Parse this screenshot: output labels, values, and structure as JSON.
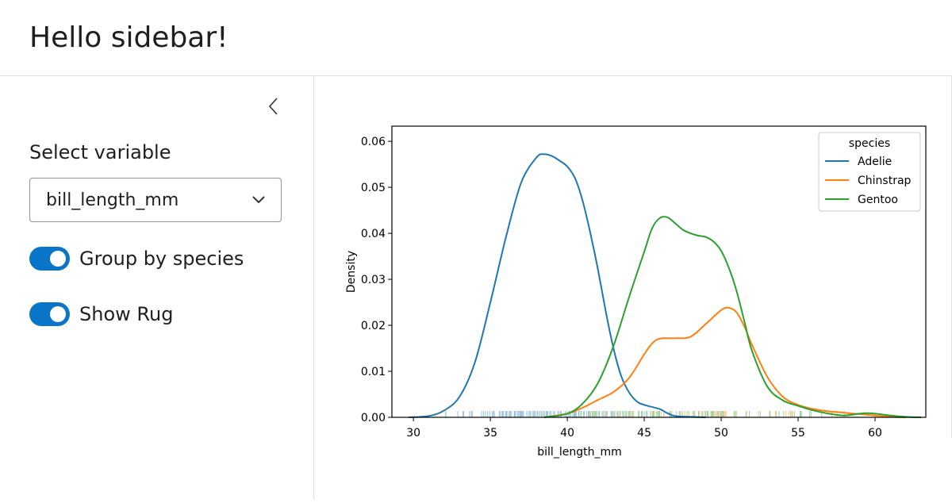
{
  "header": {
    "title": "Hello sidebar!"
  },
  "sidebar": {
    "collapse_icon": "chevron-left-icon",
    "select_label": "Select variable",
    "select_value": "bill_length_mm",
    "select_icon": "chevron-down-icon",
    "switches": [
      {
        "label": "Group by species",
        "on": true
      },
      {
        "label": "Show Rug",
        "on": true
      }
    ]
  },
  "colors": {
    "accent": "#0a74c9",
    "adelie": "#1f77b4",
    "chinstrap": "#ff7f0e",
    "gentoo": "#2ca02c"
  },
  "chart_data": {
    "type": "line",
    "xlabel": "bill_length_mm",
    "ylabel": "Density",
    "xlim": [
      28.6,
      63.3
    ],
    "ylim": [
      0,
      0.0633
    ],
    "xticks": [
      30,
      35,
      40,
      45,
      50,
      55,
      60
    ],
    "yticks": [
      0.0,
      0.01,
      0.02,
      0.03,
      0.04,
      0.05,
      0.06
    ],
    "ytick_labels": [
      "0.00",
      "0.01",
      "0.02",
      "0.03",
      "0.04",
      "0.05",
      "0.06"
    ],
    "legend": {
      "title": "species",
      "position": "top-right"
    },
    "grid": false,
    "series": [
      {
        "name": "Adelie",
        "color": "#1f77b4",
        "x": [
          29.7,
          31.0,
          32.0,
          33.0,
          34.0,
          35.0,
          36.0,
          37.0,
          38.0,
          38.5,
          39.0,
          39.5,
          40.0,
          40.5,
          41.0,
          41.5,
          42.0,
          42.5,
          43.0,
          43.5,
          44.0,
          44.5,
          45.0,
          46.0,
          46.5,
          47.0,
          48.0,
          49.0
        ],
        "y": [
          0.0,
          0.0003,
          0.0015,
          0.0045,
          0.012,
          0.025,
          0.039,
          0.051,
          0.0565,
          0.0572,
          0.0568,
          0.0558,
          0.0545,
          0.052,
          0.047,
          0.04,
          0.032,
          0.023,
          0.015,
          0.009,
          0.0055,
          0.0035,
          0.0027,
          0.0018,
          0.0009,
          0.0003,
          0.0001,
          0.0
        ]
      },
      {
        "name": "Chinstrap",
        "color": "#ff7f0e",
        "x": [
          38.5,
          40.0,
          41.0,
          42.0,
          43.0,
          44.0,
          45.0,
          45.5,
          46.0,
          47.0,
          48.0,
          49.0,
          50.0,
          50.5,
          51.0,
          51.5,
          52.0,
          53.0,
          54.0,
          55.0,
          56.0,
          57.0,
          58.0,
          59.0,
          60.0,
          61.0,
          62.0
        ],
        "y": [
          0.0,
          0.0008,
          0.0021,
          0.0038,
          0.0055,
          0.0085,
          0.0137,
          0.016,
          0.0171,
          0.0172,
          0.0175,
          0.0203,
          0.0233,
          0.0238,
          0.0228,
          0.0198,
          0.0158,
          0.0088,
          0.0045,
          0.0027,
          0.0018,
          0.0013,
          0.001,
          0.0007,
          0.0004,
          0.0001,
          0.0
        ]
      },
      {
        "name": "Gentoo",
        "color": "#2ca02c",
        "x": [
          38.5,
          40.0,
          41.0,
          42.0,
          43.0,
          44.0,
          45.0,
          45.5,
          46.0,
          46.5,
          47.0,
          47.5,
          48.0,
          48.5,
          49.0,
          49.5,
          50.0,
          50.5,
          51.0,
          51.5,
          52.0,
          53.0,
          54.0,
          55.0,
          56.0,
          57.0,
          58.0,
          59.0,
          59.5,
          60.0,
          61.0,
          62.0,
          63.0
        ],
        "y": [
          0.0,
          0.0008,
          0.003,
          0.0075,
          0.0155,
          0.026,
          0.036,
          0.041,
          0.0433,
          0.0435,
          0.0422,
          0.0408,
          0.04,
          0.0395,
          0.0392,
          0.0382,
          0.0362,
          0.0325,
          0.0275,
          0.021,
          0.0145,
          0.0067,
          0.0037,
          0.0025,
          0.0015,
          0.0008,
          0.0004,
          0.0008,
          0.0009,
          0.0008,
          0.0004,
          0.0001,
          0.0
        ]
      }
    ]
  }
}
